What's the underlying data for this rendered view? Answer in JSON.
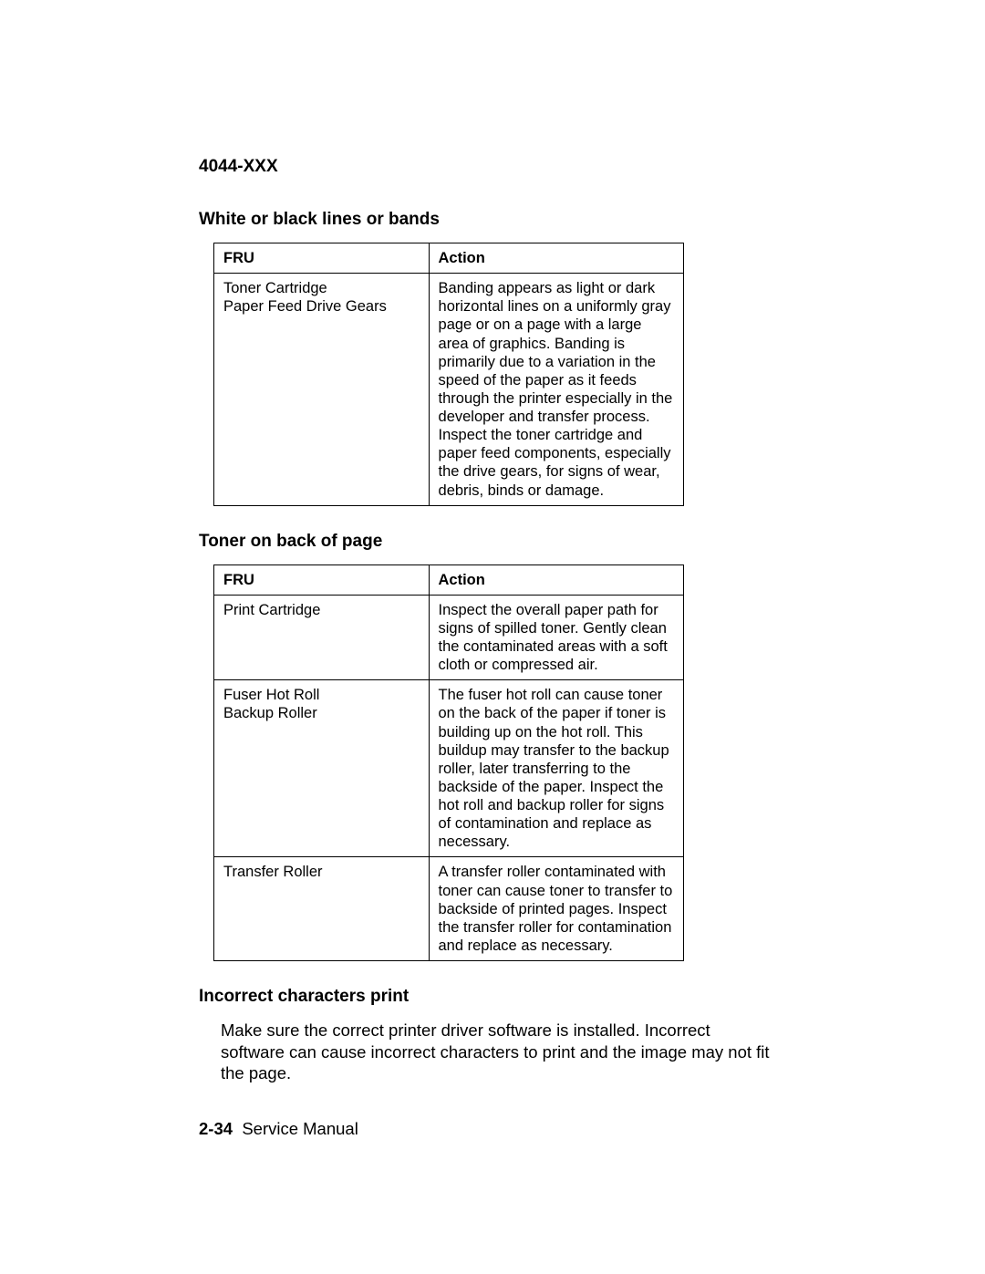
{
  "header": {
    "model": "4044-XXX"
  },
  "sections": {
    "white_black_lines": {
      "title": "White or black lines or bands",
      "columns": {
        "fru": "FRU",
        "action": "Action"
      },
      "rows": [
        {
          "fru": "Toner Cartridge\nPaper Feed Drive Gears",
          "action": "Banding appears as light or dark horizontal lines on a uniformly gray page or on a page with a large area of graphics. Banding is primarily due to a variation in the speed of the paper as it feeds through the printer especially in the developer and transfer process. Inspect the toner cartridge and paper feed components, especially the drive gears, for signs of wear, debris, binds or damage."
        }
      ]
    },
    "toner_back": {
      "title": "Toner on back of page",
      "columns": {
        "fru": "FRU",
        "action": "Action"
      },
      "rows": [
        {
          "fru": "Print Cartridge",
          "action": "Inspect the overall paper path for signs of spilled toner. Gently clean the contaminated areas with a soft cloth or compressed air."
        },
        {
          "fru": "Fuser Hot Roll\nBackup Roller",
          "action": "The fuser hot roll can cause toner on the back of the paper if toner is building up on the hot roll. This buildup may transfer to the backup roller, later transferring to the backside of the paper. Inspect the hot roll and backup roller for signs of contamination and replace as necessary."
        },
        {
          "fru": "Transfer Roller",
          "action": "A transfer roller contaminated with toner can cause toner to transfer to backside of printed pages. Inspect the transfer roller for contamination and replace as necessary."
        }
      ]
    },
    "incorrect_chars": {
      "title": "Incorrect characters print",
      "body": "Make sure the correct printer driver software is installed. Incorrect software can cause incorrect characters to print and the image may not fit the page."
    }
  },
  "footer": {
    "page": "2-34",
    "label": "Service Manual"
  }
}
